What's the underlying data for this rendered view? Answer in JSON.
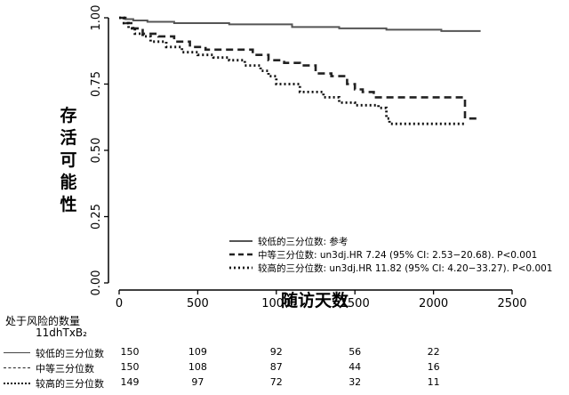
{
  "chart_data": {
    "type": "line",
    "title": "",
    "xlabel": "随访天数",
    "ylabel": "存活可能性",
    "xlim": [
      0,
      2500
    ],
    "ylim": [
      0,
      1
    ],
    "x_ticks": [
      "0",
      "500",
      "1000",
      "1500",
      "2000",
      "2500"
    ],
    "y_ticks": [
      "0.00",
      "0.25",
      "0.50",
      "0.75",
      "1.00"
    ],
    "grid": false,
    "legend_position": "bottom-right",
    "series": [
      {
        "name": "较低的三分位数: 参考",
        "style": "solid",
        "color": "#555555",
        "points": [
          [
            0,
            1.0
          ],
          [
            40,
            0.995
          ],
          [
            90,
            0.99
          ],
          [
            180,
            0.985
          ],
          [
            350,
            0.98
          ],
          [
            700,
            0.975
          ],
          [
            1100,
            0.965
          ],
          [
            1400,
            0.96
          ],
          [
            1700,
            0.955
          ],
          [
            2000,
            0.955
          ],
          [
            2050,
            0.95
          ],
          [
            2300,
            0.95
          ]
        ]
      },
      {
        "name": "中等三分位数: un3dj.HR 7.24 (95% CI: 2.53−20.68). P<0.001",
        "style": "dashed",
        "color": "#222222",
        "points": [
          [
            0,
            1.0
          ],
          [
            40,
            0.98
          ],
          [
            90,
            0.96
          ],
          [
            150,
            0.94
          ],
          [
            250,
            0.93
          ],
          [
            350,
            0.91
          ],
          [
            450,
            0.89
          ],
          [
            550,
            0.88
          ],
          [
            850,
            0.86
          ],
          [
            950,
            0.84
          ],
          [
            1050,
            0.83
          ],
          [
            1150,
            0.82
          ],
          [
            1250,
            0.79
          ],
          [
            1350,
            0.78
          ],
          [
            1450,
            0.75
          ],
          [
            1500,
            0.73
          ],
          [
            1550,
            0.72
          ],
          [
            1620,
            0.7
          ],
          [
            2200,
            0.7
          ],
          [
            2200,
            0.62
          ],
          [
            2300,
            0.62
          ]
        ]
      },
      {
        "name": "较高的三分位数: un3dj.HR 11.82 (95% CI: 4.20−33.27). P<0.001",
        "style": "dotted",
        "color": "#111111",
        "points": [
          [
            0,
            1.0
          ],
          [
            30,
            0.98
          ],
          [
            60,
            0.96
          ],
          [
            100,
            0.94
          ],
          [
            150,
            0.93
          ],
          [
            200,
            0.91
          ],
          [
            300,
            0.89
          ],
          [
            400,
            0.87
          ],
          [
            500,
            0.86
          ],
          [
            600,
            0.85
          ],
          [
            700,
            0.84
          ],
          [
            800,
            0.82
          ],
          [
            900,
            0.8
          ],
          [
            950,
            0.78
          ],
          [
            1000,
            0.75
          ],
          [
            1150,
            0.72
          ],
          [
            1300,
            0.7
          ],
          [
            1400,
            0.68
          ],
          [
            1500,
            0.67
          ],
          [
            1650,
            0.66
          ],
          [
            1700,
            0.62
          ],
          [
            1720,
            0.6
          ],
          [
            2200,
            0.6
          ]
        ]
      }
    ]
  },
  "risk_table": {
    "title": "处于风险的数量",
    "subtitle": "11dhTxB₂",
    "time_points": [
      0,
      500,
      1000,
      1500,
      2000
    ],
    "rows": [
      {
        "label": "较低的三分位数",
        "style": "solid",
        "values": [
          "150",
          "109",
          "92",
          "56",
          "22"
        ]
      },
      {
        "label": "中等三分位数",
        "style": "dashed",
        "values": [
          "150",
          "108",
          "87",
          "44",
          "16"
        ]
      },
      {
        "label": "较高的三分位数",
        "style": "dotted",
        "values": [
          "149",
          "97",
          "72",
          "32",
          "11"
        ]
      }
    ]
  }
}
